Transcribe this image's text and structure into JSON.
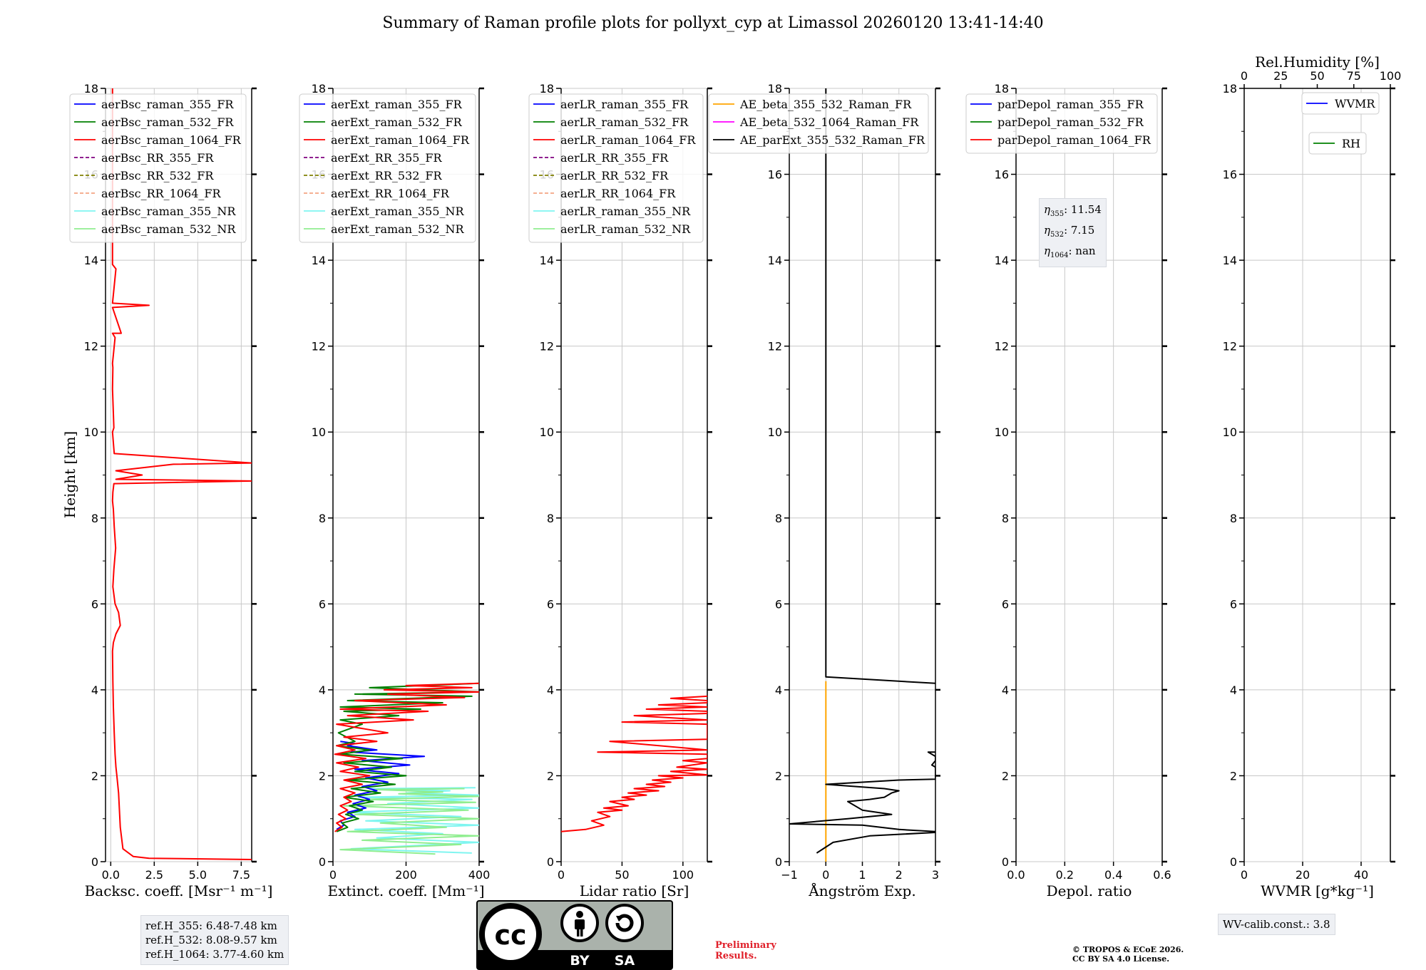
{
  "title": "Summary of Raman profile plots for pollyxt_cyp at Limassol 20260120 13:41-14:40",
  "y_label": "Height [km]",
  "y_ticks": [
    "0",
    "2",
    "4",
    "6",
    "8",
    "10",
    "12",
    "14",
    "16",
    "18"
  ],
  "eta": [
    "11.54",
    "7.15",
    "nan"
  ],
  "ref_heights": [
    "ref.H_355: 6.48-7.48 km",
    "ref.H_532: 8.08-9.57 km",
    "ref.H_1064: 3.77-4.60 km"
  ],
  "wv_calib": "WV-calib.const.: 3.8",
  "preliminary": [
    "Preliminary",
    "Results."
  ],
  "copyright": [
    "© TROPOS & ECoE 2026.",
    "CC BY SA 4.0 License."
  ],
  "license_badge": {
    "by": "BY",
    "sa": "SA"
  },
  "chart_data": [
    {
      "type": "line",
      "xlabel": "Backsc. coeff. [Msr⁻¹ m⁻¹]",
      "ylabel": "Height [km]",
      "xlim": [
        -0.3,
        8.1
      ],
      "ylim": [
        0,
        18
      ],
      "x_ticks": [
        0,
        2.5,
        5.0,
        7.5
      ],
      "x_tick_labels": [
        "0.0",
        "2.5",
        "5.0",
        "7.5"
      ],
      "legend": [
        {
          "name": "aerBsc_raman_355_FR",
          "color": "#0000ff",
          "dash": false
        },
        {
          "name": "aerBsc_raman_532_FR",
          "color": "#008000",
          "dash": false
        },
        {
          "name": "aerBsc_raman_1064_FR",
          "color": "#ff0000",
          "dash": false
        },
        {
          "name": "aerBsc_RR_355_FR",
          "color": "#800080",
          "dash": true
        },
        {
          "name": "aerBsc_RR_532_FR",
          "color": "#808000",
          "dash": true
        },
        {
          "name": "aerBsc_RR_1064_FR",
          "color": "#f4a582",
          "dash": true
        },
        {
          "name": "aerBsc_raman_355_NR",
          "color": "#7ff5f0",
          "dash": false
        },
        {
          "name": "aerBsc_raman_532_NR",
          "color": "#90ee90",
          "dash": false
        }
      ],
      "series": [
        {
          "name": "aerBsc_raman_1064_FR",
          "color": "#ff0000",
          "x": [
            8.1,
            2.2,
            1.3,
            0.7,
            0.55,
            0.5,
            0.45,
            0.4,
            0.35,
            0.3,
            0.25,
            0.2,
            0.15,
            0.12,
            0.1,
            0.15,
            0.3,
            0.55,
            0.45,
            0.25,
            0.12,
            0.18,
            0.28,
            0.2,
            0.15,
            0.1,
            0.12,
            0.18,
            8.1,
            0.3,
            1.8,
            0.3,
            3.6,
            8.1,
            0.2,
            0.1,
            0.18,
            0.1,
            0.12,
            0.1,
            0.25,
            0.1,
            0.6,
            0.1,
            2.2,
            0.1,
            0.3,
            0.1,
            0.1,
            0.1
          ],
          "y": [
            0.05,
            0.08,
            0.12,
            0.3,
            0.8,
            1.2,
            1.6,
            1.8,
            2.0,
            2.2,
            2.5,
            3.0,
            3.6,
            4.2,
            4.9,
            5.1,
            5.3,
            5.5,
            5.8,
            6.0,
            6.4,
            6.8,
            7.3,
            7.8,
            8.2,
            8.4,
            8.6,
            8.8,
            8.86,
            8.9,
            9.0,
            9.1,
            9.25,
            9.28,
            9.5,
            10.0,
            10.1,
            11.0,
            11.5,
            11.6,
            12.2,
            12.3,
            12.3,
            12.9,
            12.95,
            13.0,
            13.8,
            13.9,
            14.5,
            18.0
          ]
        }
      ]
    },
    {
      "type": "line",
      "xlabel": "Extinct. coeff. [Mm⁻¹]",
      "xlim": [
        0,
        400
      ],
      "ylim": [
        0,
        18
      ],
      "x_ticks": [
        0,
        200,
        400
      ],
      "x_tick_labels": [
        "0",
        "200",
        "400"
      ],
      "legend": [
        {
          "name": "aerExt_raman_355_FR",
          "color": "#0000ff",
          "dash": false
        },
        {
          "name": "aerExt_raman_532_FR",
          "color": "#008000",
          "dash": false
        },
        {
          "name": "aerExt_raman_1064_FR",
          "color": "#ff0000",
          "dash": false
        },
        {
          "name": "aerExt_RR_355_FR",
          "color": "#800080",
          "dash": true
        },
        {
          "name": "aerExt_RR_532_FR",
          "color": "#808000",
          "dash": true
        },
        {
          "name": "aerExt_RR_1064_FR",
          "color": "#f4a582",
          "dash": true
        },
        {
          "name": "aerExt_raman_355_NR",
          "color": "#7ff5f0",
          "dash": false
        },
        {
          "name": "aerExt_raman_532_NR",
          "color": "#90ee90",
          "dash": false
        }
      ],
      "series": [
        {
          "name": "aerExt_raman_355_NR",
          "color": "#7ff5f0",
          "x": [
            380,
            50,
            400,
            120,
            300,
            60,
            400,
            90,
            350,
            40,
            400,
            150,
            380,
            70,
            400,
            200,
            320,
            100,
            390
          ],
          "y": [
            0.2,
            0.3,
            0.45,
            0.55,
            0.65,
            0.75,
            0.85,
            0.95,
            1.05,
            1.15,
            1.25,
            1.35,
            1.45,
            1.5,
            1.55,
            1.6,
            1.65,
            1.7,
            1.72
          ]
        },
        {
          "name": "aerExt_raman_532_NR",
          "color": "#90ee90",
          "x": [
            280,
            20,
            350,
            80,
            400,
            40,
            310,
            130,
            400,
            60,
            370,
            30,
            390,
            90,
            400,
            180,
            300,
            110,
            360
          ],
          "y": [
            0.18,
            0.28,
            0.4,
            0.5,
            0.6,
            0.7,
            0.8,
            0.9,
            1.0,
            1.1,
            1.2,
            1.3,
            1.38,
            1.45,
            1.52,
            1.58,
            1.62,
            1.68,
            1.7
          ]
        },
        {
          "name": "aerExt_raman_355_FR",
          "color": "#0000ff",
          "x": [
            10,
            30,
            20,
            60,
            40,
            90,
            55,
            100,
            60,
            120,
            80,
            150,
            90,
            180,
            60,
            210,
            80,
            250,
            50,
            120,
            40,
            60,
            20
          ],
          "y": [
            0.75,
            0.85,
            0.95,
            1.05,
            1.15,
            1.25,
            1.35,
            1.45,
            1.55,
            1.65,
            1.75,
            1.85,
            1.95,
            2.05,
            2.15,
            2.25,
            2.35,
            2.45,
            2.55,
            2.6,
            2.7,
            2.75,
            2.8
          ]
        },
        {
          "name": "aerExt_raman_532_FR",
          "color": "#008000",
          "x": [
            10,
            40,
            25,
            70,
            35,
            80,
            45,
            110,
            30,
            130,
            50,
            170,
            40,
            200,
            60,
            160,
            30,
            190,
            20,
            100,
            10,
            60,
            15,
            80,
            20,
            180,
            30,
            240,
            20,
            300,
            40,
            380,
            60,
            400,
            100,
            400
          ],
          "y": [
            0.7,
            0.8,
            0.9,
            1.0,
            1.1,
            1.2,
            1.3,
            1.4,
            1.5,
            1.6,
            1.7,
            1.8,
            1.9,
            2.0,
            2.1,
            2.2,
            2.3,
            2.4,
            2.5,
            2.6,
            2.7,
            2.8,
            3.0,
            3.2,
            3.3,
            3.4,
            3.5,
            3.55,
            3.6,
            3.7,
            3.75,
            3.85,
            3.9,
            3.95,
            4.05,
            4.15
          ]
        },
        {
          "name": "aerExt_raman_1064_FR",
          "color": "#ff0000",
          "x": [
            5,
            25,
            10,
            35,
            15,
            40,
            20,
            50,
            30,
            60,
            20,
            80,
            30,
            100,
            20,
            70,
            10,
            90,
            5,
            60,
            10,
            120,
            30,
            150,
            10,
            220,
            40,
            260,
            20,
            310,
            60,
            360,
            150,
            400,
            140,
            380,
            200,
            400
          ],
          "y": [
            0.7,
            0.8,
            0.9,
            1.0,
            1.1,
            1.2,
            1.3,
            1.4,
            1.5,
            1.6,
            1.7,
            1.8,
            1.9,
            2.0,
            2.1,
            2.2,
            2.3,
            2.4,
            2.5,
            2.6,
            2.7,
            2.8,
            2.9,
            3.0,
            3.2,
            3.3,
            3.4,
            3.5,
            3.55,
            3.65,
            3.75,
            3.82,
            3.9,
            3.95,
            4.0,
            4.05,
            4.1,
            4.15
          ]
        }
      ]
    },
    {
      "type": "line",
      "xlabel": "Lidar ratio [Sr]",
      "xlim": [
        0,
        120
      ],
      "ylim": [
        0,
        18
      ],
      "x_ticks": [
        0,
        50,
        100
      ],
      "x_tick_labels": [
        "0",
        "50",
        "100"
      ],
      "legend": [
        {
          "name": "aerLR_raman_355_FR",
          "color": "#0000ff",
          "dash": false
        },
        {
          "name": "aerLR_raman_532_FR",
          "color": "#008000",
          "dash": false
        },
        {
          "name": "aerLR_raman_1064_FR",
          "color": "#ff0000",
          "dash": false
        },
        {
          "name": "aerLR_RR_355_FR",
          "color": "#800080",
          "dash": true
        },
        {
          "name": "aerLR_RR_532_FR",
          "color": "#808000",
          "dash": true
        },
        {
          "name": "aerLR_RR_1064_FR",
          "color": "#f4a582",
          "dash": true
        },
        {
          "name": "aerLR_raman_355_NR",
          "color": "#7ff5f0",
          "dash": false
        },
        {
          "name": "aerLR_raman_532_NR",
          "color": "#90ee90",
          "dash": false
        }
      ],
      "series": [
        {
          "name": "aerLR_raman_1064_FR",
          "color": "#ff0000",
          "x": [
            0,
            20,
            35,
            25,
            40,
            30,
            50,
            35,
            55,
            40,
            60,
            50,
            70,
            55,
            80,
            60,
            85,
            70,
            90,
            75,
            100,
            80,
            120,
            90,
            120,
            95,
            120,
            100,
            120,
            120,
            30,
            120,
            40,
            120,
            120,
            50,
            120,
            60,
            120,
            120,
            70,
            120,
            80,
            120,
            120,
            90,
            120
          ],
          "y": [
            0.7,
            0.75,
            0.85,
            0.95,
            1.05,
            1.15,
            1.2,
            1.25,
            1.3,
            1.4,
            1.45,
            1.5,
            1.55,
            1.6,
            1.65,
            1.7,
            1.75,
            1.8,
            1.85,
            1.9,
            1.95,
            2.0,
            2.02,
            2.1,
            2.15,
            2.2,
            2.3,
            2.35,
            2.4,
            2.5,
            2.55,
            2.6,
            2.8,
            2.85,
            3.2,
            3.25,
            3.3,
            3.4,
            3.45,
            3.5,
            3.55,
            3.6,
            3.65,
            3.7,
            3.75,
            3.8,
            3.85
          ]
        }
      ]
    },
    {
      "type": "line",
      "xlabel": "Ångström Exp.",
      "xlim": [
        -1,
        3
      ],
      "ylim": [
        0,
        18
      ],
      "x_ticks": [
        -1,
        0,
        1,
        2,
        3
      ],
      "x_tick_labels": [
        "−1",
        "0",
        "1",
        "2",
        "3"
      ],
      "legend": [
        {
          "name": "AE_beta_355_532_Raman_FR",
          "color": "#ffa500",
          "dash": false
        },
        {
          "name": "AE_beta_532_1064_Raman_FR",
          "color": "#ff00ff",
          "dash": false
        },
        {
          "name": "AE_parExt_355_532_Raman_FR",
          "color": "#000000",
          "dash": false
        }
      ],
      "series": [
        {
          "name": "AE_beta_355_532_Raman_FR",
          "color": "#ffa500",
          "x": [
            0,
            0
          ],
          "y": [
            0,
            4.2
          ]
        },
        {
          "name": "AE_parExt_355_532_Raman_FR",
          "color": "#000000",
          "x": [
            -0.25,
            0.2,
            1.2,
            3.0,
            3.0,
            2.0,
            1.0,
            -1.0,
            0.6,
            1.8,
            1.0,
            0.6,
            1.2,
            1.6,
            1.8,
            2.0,
            1.6,
            0.8,
            0,
            1.0,
            2.0,
            3.0,
            3.0,
            2.9,
            2.95,
            3.0,
            3.0,
            2.8,
            3.0
          ],
          "y": [
            0.2,
            0.45,
            0.6,
            0.68,
            0.7,
            0.75,
            0.85,
            0.88,
            1.0,
            1.1,
            1.2,
            1.4,
            1.45,
            1.5,
            1.6,
            1.65,
            1.7,
            1.75,
            1.8,
            1.85,
            1.9,
            1.92,
            2.2,
            2.25,
            2.3,
            2.35,
            2.45,
            2.55,
            2.55
          ]
        },
        {
          "name": "AE_parExt_355_532_Raman_FR",
          "color": "#000000",
          "x": [
            3.0,
            0,
            0
          ],
          "y": [
            4.15,
            4.3,
            18
          ]
        }
      ]
    },
    {
      "type": "line",
      "xlabel": "Depol. ratio",
      "xlim": [
        0,
        0.6
      ],
      "ylim": [
        0,
        18
      ],
      "x_ticks": [
        0,
        0.2,
        0.4,
        0.6
      ],
      "x_tick_labels": [
        "0.0",
        "0.2",
        "0.4",
        "0.6"
      ],
      "legend": [
        {
          "name": "parDepol_raman_355_FR",
          "color": "#0000ff",
          "dash": false
        },
        {
          "name": "parDepol_raman_532_FR",
          "color": "#008000",
          "dash": false
        },
        {
          "name": "parDepol_raman_1064_FR",
          "color": "#ff0000",
          "dash": false
        }
      ],
      "series": []
    },
    {
      "type": "line",
      "xlabel": "WVMR [g*kg⁻¹]",
      "x2label": "Rel.Humidity [%]",
      "xlim": [
        0,
        50
      ],
      "ylim": [
        0,
        18
      ],
      "x_ticks": [
        0,
        20,
        40
      ],
      "x_tick_labels": [
        "0",
        "20",
        "40"
      ],
      "x2lim": [
        0,
        100
      ],
      "x2_ticks": [
        0,
        25,
        50,
        75,
        100
      ],
      "x2_tick_labels": [
        "0",
        "25",
        "50",
        "75",
        "100"
      ],
      "legend": [
        {
          "name": "WVMR",
          "color": "#0000ff",
          "dash": false
        },
        {
          "name": "RH",
          "color": "#008000",
          "dash": false
        }
      ],
      "series": []
    }
  ]
}
